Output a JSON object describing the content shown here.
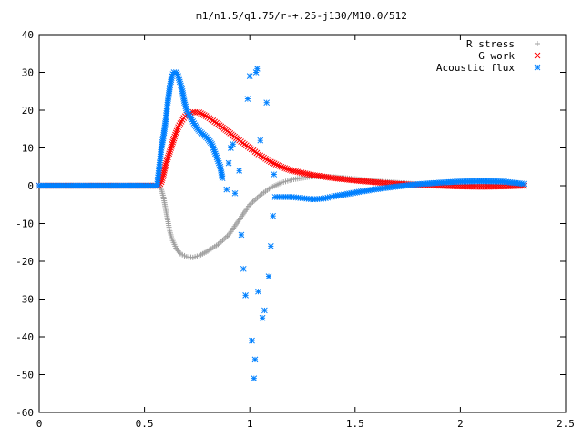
{
  "chart_data": {
    "type": "scatter",
    "title": "m1/n1.5/q1.75/r-+.25-j130/M10.0/512",
    "xlabel": "",
    "ylabel": "",
    "xlim": [
      0,
      2.5
    ],
    "ylim": [
      -60,
      40
    ],
    "x_ticks": [
      0,
      0.5,
      1,
      1.5,
      2,
      2.5
    ],
    "y_ticks": [
      40,
      30,
      20,
      10,
      0,
      -10,
      -20,
      -30,
      -40,
      -50,
      -60
    ],
    "grid": false,
    "legend_position": "top-right",
    "series": [
      {
        "name": "R stress",
        "marker": "plus",
        "color": "#a0a0a0",
        "points": [
          [
            0.0,
            0
          ],
          [
            0.2,
            0
          ],
          [
            0.4,
            0
          ],
          [
            0.57,
            0
          ],
          [
            0.58,
            -1
          ],
          [
            0.59,
            -3
          ],
          [
            0.6,
            -6
          ],
          [
            0.61,
            -9
          ],
          [
            0.62,
            -12
          ],
          [
            0.63,
            -14
          ],
          [
            0.65,
            -16.5
          ],
          [
            0.67,
            -18
          ],
          [
            0.7,
            -18.8
          ],
          [
            0.73,
            -19
          ],
          [
            0.76,
            -18.5
          ],
          [
            0.8,
            -17.3
          ],
          [
            0.85,
            -15.5
          ],
          [
            0.9,
            -13
          ],
          [
            0.95,
            -9
          ],
          [
            1.0,
            -5
          ],
          [
            1.05,
            -2.5
          ],
          [
            1.1,
            -0.5
          ],
          [
            1.15,
            0.8
          ],
          [
            1.2,
            1.6
          ],
          [
            1.3,
            2.5
          ],
          [
            1.4,
            2.3
          ],
          [
            1.5,
            1.8
          ],
          [
            1.6,
            1.2
          ],
          [
            1.7,
            0.8
          ],
          [
            1.8,
            0.4
          ],
          [
            1.9,
            0.2
          ],
          [
            2.0,
            0.1
          ],
          [
            2.1,
            0
          ],
          [
            2.2,
            0
          ],
          [
            2.3,
            0
          ]
        ]
      },
      {
        "name": "G work",
        "marker": "cross",
        "color": "#ff0000",
        "points": [
          [
            0.0,
            0
          ],
          [
            0.2,
            0
          ],
          [
            0.4,
            0
          ],
          [
            0.57,
            0
          ],
          [
            0.58,
            1
          ],
          [
            0.59,
            3
          ],
          [
            0.6,
            5.5
          ],
          [
            0.62,
            9
          ],
          [
            0.64,
            12.5
          ],
          [
            0.66,
            15.5
          ],
          [
            0.68,
            17.5
          ],
          [
            0.7,
            18.8
          ],
          [
            0.73,
            19.5
          ],
          [
            0.76,
            19.4
          ],
          [
            0.8,
            18.2
          ],
          [
            0.85,
            16.3
          ],
          [
            0.9,
            14.2
          ],
          [
            0.95,
            12
          ],
          [
            1.0,
            10
          ],
          [
            1.05,
            8
          ],
          [
            1.1,
            6.3
          ],
          [
            1.15,
            5
          ],
          [
            1.2,
            4
          ],
          [
            1.3,
            2.8
          ],
          [
            1.4,
            2
          ],
          [
            1.5,
            1.4
          ],
          [
            1.6,
            0.9
          ],
          [
            1.7,
            0.5
          ],
          [
            1.8,
            0.2
          ],
          [
            1.9,
            0
          ],
          [
            2.0,
            -0.2
          ],
          [
            2.1,
            -0.3
          ],
          [
            2.2,
            -0.2
          ],
          [
            2.3,
            0
          ]
        ]
      },
      {
        "name": "Acoustic flux",
        "marker": "star",
        "color": "#0080ff",
        "points": [
          [
            0.0,
            0
          ],
          [
            0.1,
            0
          ],
          [
            0.2,
            0
          ],
          [
            0.3,
            0
          ],
          [
            0.4,
            0
          ],
          [
            0.5,
            0
          ],
          [
            0.56,
            0
          ],
          [
            0.57,
            5
          ],
          [
            0.58,
            10
          ],
          [
            0.59,
            13
          ],
          [
            0.6,
            17
          ],
          [
            0.61,
            22
          ],
          [
            0.62,
            26
          ],
          [
            0.63,
            29
          ],
          [
            0.64,
            30
          ],
          [
            0.65,
            30
          ],
          [
            0.66,
            29
          ],
          [
            0.67,
            27
          ],
          [
            0.68,
            25
          ],
          [
            0.69,
            22
          ],
          [
            0.7,
            20
          ],
          [
            0.72,
            18
          ],
          [
            0.74,
            16
          ],
          [
            0.76,
            14.5
          ],
          [
            0.78,
            13.5
          ],
          [
            0.8,
            12.5
          ],
          [
            0.82,
            11
          ],
          [
            0.84,
            8
          ],
          [
            0.86,
            5
          ],
          [
            0.87,
            2
          ],
          [
            0.89,
            -1
          ],
          [
            0.9,
            6
          ],
          [
            0.91,
            10
          ],
          [
            0.92,
            11
          ],
          [
            0.93,
            -2
          ],
          [
            0.95,
            4
          ],
          [
            0.96,
            -13
          ],
          [
            0.97,
            -22
          ],
          [
            0.98,
            -29
          ],
          [
            0.99,
            23
          ],
          [
            1.0,
            29
          ],
          [
            1.01,
            -41
          ],
          [
            1.02,
            -51
          ],
          [
            1.025,
            -46
          ],
          [
            1.03,
            30
          ],
          [
            1.035,
            31
          ],
          [
            1.04,
            -28
          ],
          [
            1.05,
            12
          ],
          [
            1.06,
            -35
          ],
          [
            1.07,
            -33
          ],
          [
            1.08,
            22
          ],
          [
            1.09,
            -24
          ],
          [
            1.1,
            -16
          ],
          [
            1.11,
            -8
          ],
          [
            1.115,
            3
          ],
          [
            1.12,
            -3
          ],
          [
            1.15,
            -3
          ],
          [
            1.2,
            -3
          ],
          [
            1.25,
            -3.3
          ],
          [
            1.3,
            -3.6
          ],
          [
            1.35,
            -3.4
          ],
          [
            1.4,
            -2.8
          ],
          [
            1.5,
            -1.8
          ],
          [
            1.6,
            -0.9
          ],
          [
            1.7,
            -0.2
          ],
          [
            1.8,
            0.4
          ],
          [
            1.9,
            0.8
          ],
          [
            2.0,
            1.1
          ],
          [
            2.1,
            1.2
          ],
          [
            2.2,
            1.1
          ],
          [
            2.3,
            0.5
          ]
        ]
      }
    ]
  }
}
